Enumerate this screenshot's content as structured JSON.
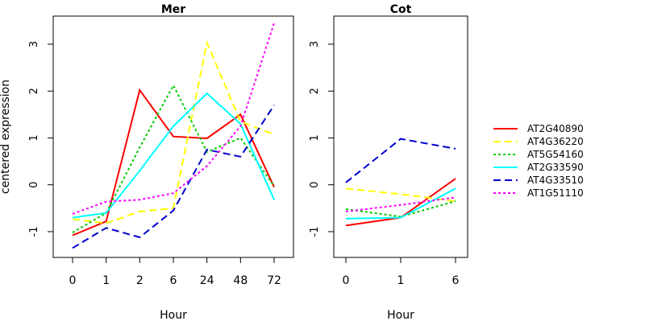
{
  "chart_data": [
    {
      "type": "line",
      "title": "Mer",
      "xlabel": "Hour",
      "ylabel": "centered expression",
      "categories": [
        "0",
        "1",
        "2",
        "6",
        "24",
        "48",
        "72"
      ],
      "yticks": [
        "-1",
        "0",
        "1",
        "2",
        "3"
      ],
      "ylim": [
        -1.55,
        3.6
      ],
      "series": [
        {
          "name": "AT2G40890",
          "color": "#ff0000",
          "dash": "solid",
          "values": [
            -1.08,
            -0.78,
            2.02,
            1.03,
            0.99,
            1.5,
            -0.05
          ]
        },
        {
          "name": "AT4G36220",
          "color": "#ffff00",
          "dash": "dashed",
          "values": [
            -0.73,
            -0.82,
            -0.57,
            -0.5,
            3.03,
            1.35,
            1.07
          ]
        },
        {
          "name": "AT5G54160",
          "color": "#00cc00",
          "dash": "dotted",
          "values": [
            -1.02,
            -0.6,
            0.8,
            2.12,
            0.7,
            1.0,
            -0.03
          ]
        },
        {
          "name": "AT2G33590",
          "color": "#00ffff",
          "dash": "solid",
          "values": [
            -0.7,
            -0.6,
            0.3,
            1.25,
            1.95,
            1.3,
            -0.32
          ]
        },
        {
          "name": "AT4G33510",
          "color": "#0000cc",
          "dash": "dashed",
          "values": [
            -1.35,
            -0.92,
            -1.12,
            -0.55,
            0.75,
            0.6,
            1.7
          ]
        },
        {
          "name": "AT1G51110",
          "color": "#ff00ff",
          "dash": "dotted",
          "values": [
            -0.62,
            -0.36,
            -0.32,
            -0.18,
            0.4,
            1.25,
            3.45
          ]
        }
      ]
    },
    {
      "type": "line",
      "title": "Cot",
      "xlabel": "Hour",
      "ylabel": "",
      "categories": [
        "0",
        "1",
        "6"
      ],
      "yticks": [
        "-1",
        "0",
        "1",
        "2",
        "3"
      ],
      "ylim": [
        -1.55,
        3.6
      ],
      "series": [
        {
          "name": "AT2G40890",
          "color": "#ff0000",
          "dash": "solid",
          "values": [
            -0.87,
            -0.7,
            0.13
          ]
        },
        {
          "name": "AT4G36220",
          "color": "#ffff00",
          "dash": "dashed",
          "values": [
            -0.08,
            -0.2,
            -0.35
          ]
        },
        {
          "name": "AT5G54160",
          "color": "#00cc00",
          "dash": "dotted",
          "values": [
            -0.52,
            -0.68,
            -0.35
          ]
        },
        {
          "name": "AT2G33590",
          "color": "#00ffff",
          "dash": "solid",
          "values": [
            -0.72,
            -0.7,
            -0.08
          ]
        },
        {
          "name": "AT4G33510",
          "color": "#0000cc",
          "dash": "dashed",
          "values": [
            0.05,
            0.98,
            0.77
          ]
        },
        {
          "name": "AT1G51110",
          "color": "#ff00ff",
          "dash": "dotted",
          "values": [
            -0.57,
            -0.43,
            -0.27
          ]
        }
      ]
    }
  ],
  "legend": {
    "placement": "right",
    "entries": [
      "AT2G40890",
      "AT4G36220",
      "AT5G54160",
      "AT2G33590",
      "AT4G33510",
      "AT1G51110"
    ]
  }
}
